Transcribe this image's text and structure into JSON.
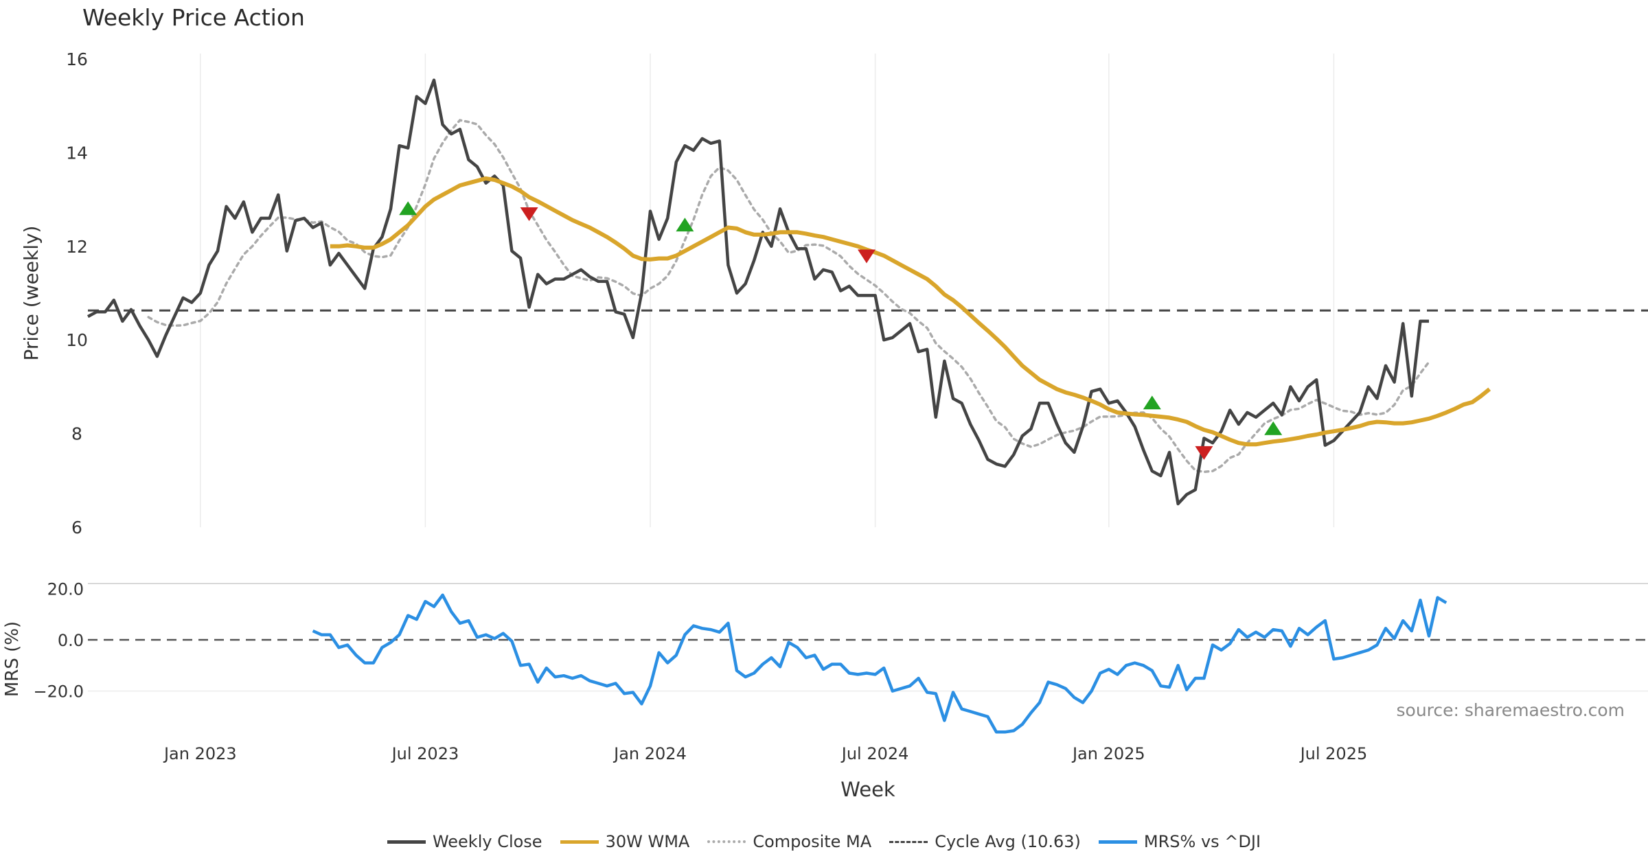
{
  "chart_data": {
    "type": "line",
    "title": "Weekly Price Action",
    "source": "source: sharemaestro.com",
    "xlabel": "Week",
    "x_ticks": [
      {
        "label": "Jan 2023",
        "i": 13
      },
      {
        "label": "Jul 2023",
        "i": 39
      },
      {
        "label": "Jan 2024",
        "i": 65
      },
      {
        "label": "Jul 2024",
        "i": 91
      },
      {
        "label": "Jan 2025",
        "i": 118
      },
      {
        "label": "Jul 2025",
        "i": 144
      }
    ],
    "price_panel": {
      "ylabel": "Price (weekly)",
      "ylim": [
        6,
        16
      ],
      "yticks": [
        "6",
        "8",
        "10",
        "12",
        "14",
        "16"
      ],
      "cycle_avg": 10.63,
      "series": {
        "weekly_close": [
          10.5,
          10.6,
          10.6,
          10.85,
          10.4,
          10.65,
          10.3,
          10.0,
          9.65,
          10.1,
          10.5,
          10.9,
          10.8,
          11.0,
          11.6,
          11.9,
          12.85,
          12.6,
          12.95,
          12.3,
          12.6,
          12.6,
          13.1,
          11.9,
          12.55,
          12.6,
          12.4,
          12.5,
          11.6,
          11.85,
          11.6,
          11.35,
          11.1,
          11.95,
          12.2,
          12.8,
          14.15,
          14.1,
          15.2,
          15.05,
          15.55,
          14.6,
          14.4,
          14.5,
          13.85,
          13.7,
          13.35,
          13.5,
          13.3,
          11.9,
          11.75,
          10.7,
          11.4,
          11.2,
          11.3,
          11.3,
          11.4,
          11.5,
          11.35,
          11.25,
          11.25,
          10.6,
          10.55,
          10.05,
          11.0,
          12.75,
          12.15,
          12.6,
          13.8,
          14.15,
          14.05,
          14.3,
          14.2,
          14.25,
          11.6,
          11.0,
          11.2,
          11.7,
          12.3,
          12.0,
          12.8,
          12.3,
          11.95,
          11.95,
          11.3,
          11.5,
          11.45,
          11.05,
          11.15,
          10.95,
          10.95,
          10.95,
          10.0,
          10.05,
          10.2,
          10.35,
          9.75,
          9.8,
          8.35,
          9.55,
          8.75,
          8.65,
          8.2,
          7.85,
          7.45,
          7.35,
          7.3,
          7.55,
          7.95,
          8.1,
          8.65,
          8.65,
          8.2,
          7.8,
          7.6,
          8.15,
          8.9,
          8.95,
          8.65,
          8.7,
          8.45,
          8.15,
          7.65,
          7.2,
          7.1,
          7.6,
          6.5,
          6.7,
          6.8,
          7.9,
          7.8,
          8.05,
          8.5,
          8.2,
          8.45,
          8.35,
          8.5,
          8.65,
          8.4,
          9.0,
          8.7,
          9.0,
          9.15,
          7.75,
          7.85,
          8.05,
          8.25,
          8.45,
          9.0,
          8.75,
          9.45,
          9.1,
          10.35,
          8.8,
          10.4,
          10.4
        ],
        "wma_30w": [
          null,
          null,
          null,
          null,
          null,
          null,
          null,
          null,
          null,
          null,
          null,
          null,
          null,
          null,
          null,
          null,
          null,
          null,
          null,
          null,
          null,
          null,
          null,
          null,
          null,
          null,
          null,
          null,
          12.0,
          12.0,
          12.02,
          12.0,
          11.97,
          11.97,
          12.05,
          12.15,
          12.3,
          12.45,
          12.65,
          12.85,
          13.0,
          13.1,
          13.2,
          13.3,
          13.35,
          13.4,
          13.45,
          13.42,
          13.35,
          13.28,
          13.18,
          13.05,
          12.96,
          12.86,
          12.76,
          12.66,
          12.56,
          12.48,
          12.4,
          12.3,
          12.2,
          12.08,
          11.95,
          11.8,
          11.73,
          11.72,
          11.74,
          11.74,
          11.8,
          11.9,
          12.0,
          12.1,
          12.2,
          12.3,
          12.4,
          12.38,
          12.3,
          12.25,
          12.25,
          12.27,
          12.3,
          12.3,
          12.3,
          12.27,
          12.23,
          12.2,
          12.15,
          12.1,
          12.05,
          12.0,
          11.93,
          11.87,
          11.8,
          11.7,
          11.6,
          11.5,
          11.4,
          11.3,
          11.15,
          10.97,
          10.85,
          10.7,
          10.53,
          10.36,
          10.2,
          10.03,
          9.85,
          9.65,
          9.45,
          9.3,
          9.15,
          9.05,
          8.95,
          8.88,
          8.83,
          8.77,
          8.7,
          8.62,
          8.52,
          8.45,
          8.43,
          8.41,
          8.4,
          8.38,
          8.36,
          8.34,
          8.3,
          8.25,
          8.16,
          8.08,
          8.03,
          7.95,
          7.87,
          7.8,
          7.77,
          7.77,
          7.8,
          7.83,
          7.85,
          7.88,
          7.91,
          7.95,
          7.98,
          8.02,
          8.05,
          8.08,
          8.12,
          8.16,
          8.22,
          8.25,
          8.24,
          8.22,
          8.22,
          8.24,
          8.28,
          8.32,
          8.38,
          8.45,
          8.53,
          8.62,
          8.67,
          8.8,
          8.95
        ]
      },
      "signals": [
        {
          "type": "buy",
          "i": 37,
          "value": 12.8
        },
        {
          "type": "sell",
          "i": 51,
          "value": 12.7
        },
        {
          "type": "buy",
          "i": 69,
          "value": 12.45
        },
        {
          "type": "sell",
          "i": 90,
          "value": 11.8
        },
        {
          "type": "buy",
          "i": 123,
          "value": 8.65
        },
        {
          "type": "sell",
          "i": 129,
          "value": 7.6
        },
        {
          "type": "buy",
          "i": 137,
          "value": 8.1
        }
      ]
    },
    "mrs_panel": {
      "ylabel": "MRS (%)",
      "ylim": [
        -37,
        22
      ],
      "yticks": [
        "20.0",
        "0.0",
        "−20.0"
      ],
      "series": {
        "mrs_vs_dji": [
          null,
          null,
          null,
          null,
          null,
          null,
          null,
          null,
          null,
          null,
          null,
          null,
          null,
          null,
          null,
          null,
          null,
          null,
          null,
          null,
          null,
          null,
          null,
          null,
          null,
          null,
          3.5,
          2.0,
          2.0,
          -3.0,
          -2.0,
          -6.0,
          -9.0,
          -9.0,
          -3.0,
          -1.0,
          2.0,
          9.5,
          8.0,
          15.0,
          13.0,
          17.5,
          11.0,
          6.5,
          7.5,
          1.0,
          2.0,
          0.5,
          2.5,
          -0.5,
          -10.0,
          -9.5,
          -16.5,
          -11.0,
          -14.5,
          -14.0,
          -15.0,
          -14.0,
          -16.0,
          -17.0,
          -18.0,
          -17.0,
          -21.0,
          -20.5,
          -25.0,
          -18.0,
          -5.0,
          -9.0,
          -6.0,
          2.0,
          5.5,
          4.5,
          4.0,
          3.0,
          6.5,
          -12.0,
          -14.5,
          -13.0,
          -9.5,
          -7.0,
          -10.5,
          -1.0,
          -3.0,
          -7.0,
          -6.0,
          -11.5,
          -9.5,
          -9.5,
          -13.0,
          -13.5,
          -13.0,
          -13.5,
          -11.0,
          -20.0,
          -19.0,
          -18.0,
          -15.0,
          -20.5,
          -21.0,
          -31.5,
          -20.5,
          -27.0,
          -28.0,
          -29.0,
          -30.0,
          -36.0,
          -36.0,
          -35.5,
          -33.0,
          -28.5,
          -24.5,
          -16.5,
          -17.5,
          -19.0,
          -22.5,
          -24.5,
          -20.0,
          -13.0,
          -11.5,
          -13.5,
          -10.0,
          -9.0,
          -10.0,
          -12.0,
          -18.0,
          -18.5,
          -10.0,
          -19.5,
          -15.0,
          -15.0,
          -2.0,
          -4.0,
          -1.5,
          4.0,
          1.0,
          3.0,
          1.0,
          4.0,
          3.5,
          -2.5,
          4.5,
          2.0,
          5.0,
          7.5,
          -7.5,
          -7.0,
          -6.0,
          -5.0,
          -4.0,
          -2.0,
          4.5,
          0.5,
          7.5,
          3.5,
          15.5,
          1.5,
          16.5,
          14.5
        ]
      }
    },
    "legend": [
      {
        "name": "Weekly Close",
        "color": "#444444",
        "style": "solid"
      },
      {
        "name": "30W WMA",
        "color": "#d9a52b",
        "style": "solid"
      },
      {
        "name": "Composite MA",
        "color": "#aaaaaa",
        "style": "dotted"
      },
      {
        "name": "Cycle Avg (10.63)",
        "color": "#444444",
        "style": "dashed"
      },
      {
        "name": "MRS% vs ^DJI",
        "color": "#2b8fe3",
        "style": "solid"
      }
    ],
    "colors": {
      "close": "#444444",
      "wma": "#d9a52b",
      "composite": "#aaaaaa",
      "mrs": "#2b8fe3",
      "buy": "#22a322",
      "sell": "#cc1f1f"
    }
  }
}
